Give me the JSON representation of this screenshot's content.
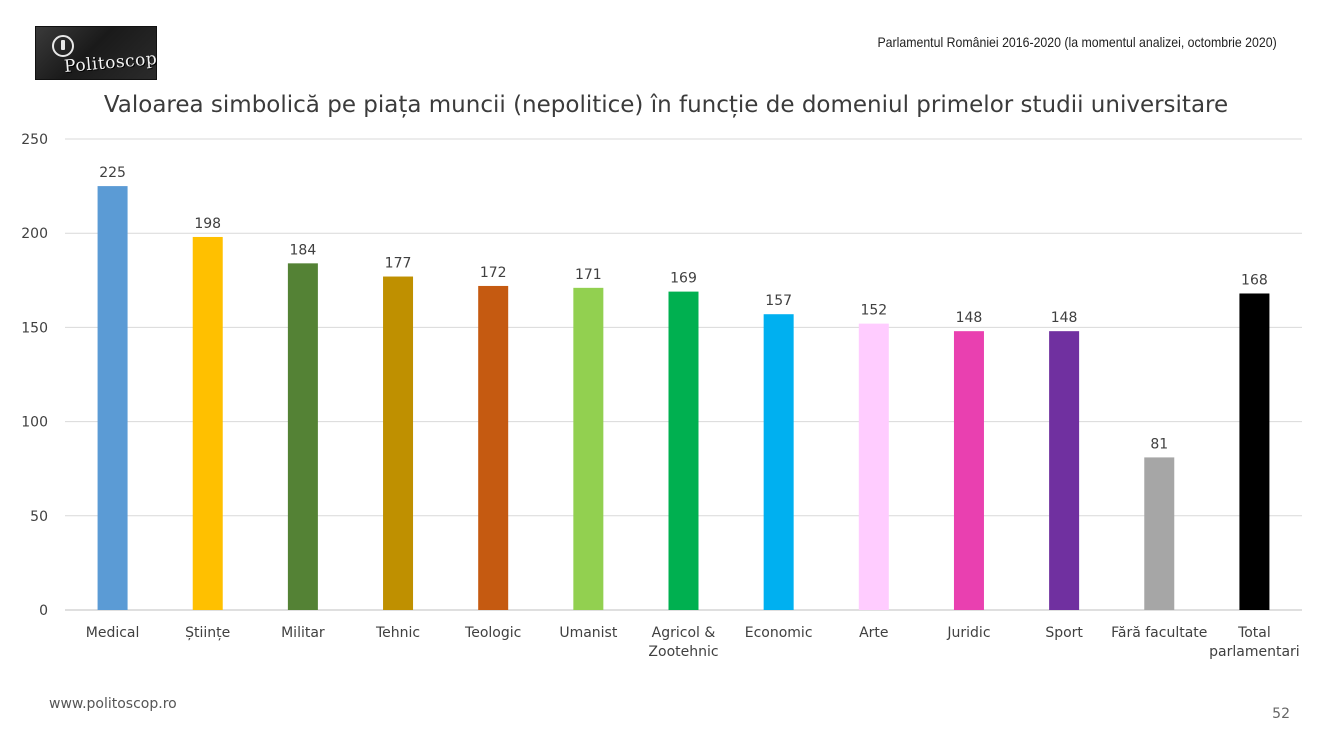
{
  "header": {
    "logo_text": "Politoscop",
    "source_note": "Parlamentul României 2016-2020 (la momentul analizei, octombrie 2020)"
  },
  "chart_data": {
    "type": "bar",
    "title": "Valoarea simbolică pe piața muncii (nepolitice) în funcție de domeniul primelor studii universitare",
    "xlabel": "",
    "ylabel": "",
    "ylim": [
      0,
      250
    ],
    "yticks": [
      0,
      50,
      100,
      150,
      200,
      250
    ],
    "grid": true,
    "legend": "none",
    "categories": [
      [
        "Medical"
      ],
      [
        "Științe"
      ],
      [
        "Militar"
      ],
      [
        "Tehnic"
      ],
      [
        "Teologic"
      ],
      [
        "Umanist"
      ],
      [
        "Agricol &",
        "Zootehnic"
      ],
      [
        "Economic"
      ],
      [
        "Arte"
      ],
      [
        "Juridic"
      ],
      [
        "Sport"
      ],
      [
        "Fără facultate"
      ],
      [
        "Total",
        "parlamentari"
      ]
    ],
    "values": [
      225,
      198,
      184,
      177,
      172,
      171,
      169,
      157,
      152,
      148,
      148,
      81,
      168
    ],
    "colors": [
      "#5b9bd5",
      "#ffc000",
      "#548235",
      "#bf9000",
      "#c55a11",
      "#92d050",
      "#00b050",
      "#00b0f0",
      "#ffccff",
      "#e940b0",
      "#7030a0",
      "#a6a6a6",
      "#000000"
    ]
  },
  "footer": {
    "url": "www.politoscop.ro",
    "page_number": "52"
  }
}
